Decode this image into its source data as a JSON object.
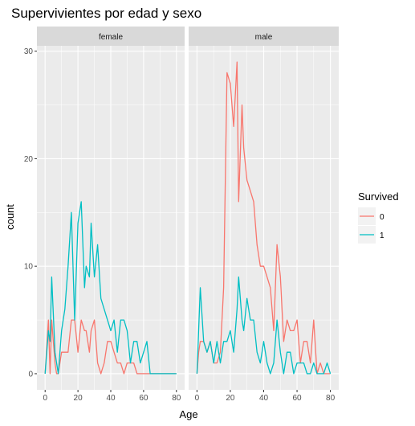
{
  "chart_data": {
    "type": "line",
    "title": "Supervivientes por edad y sexo",
    "xlabel": "Age",
    "ylabel": "count",
    "xlim": [
      -5,
      85
    ],
    "ylim": [
      -1.5,
      30.5
    ],
    "x_ticks": [
      0,
      20,
      40,
      60,
      80
    ],
    "y_ticks": [
      0,
      10,
      20,
      30
    ],
    "grid": true,
    "legend": {
      "title": "Survived",
      "placement": "right",
      "entries": [
        {
          "label": "0",
          "color": "#F8766D"
        },
        {
          "label": "1",
          "color": "#00BFC4"
        }
      ]
    },
    "panels": [
      {
        "name": "female",
        "series": [
          {
            "label": "0",
            "color": "#F8766D",
            "x": [
              0,
              2,
              3,
              4,
              6,
              7,
              8,
              10,
              12,
              14,
              16,
              18,
              20,
              22,
              24,
              25,
              27,
              28,
              30,
              32,
              34,
              36,
              38,
              40,
              42,
              44,
              46,
              48,
              50,
              52,
              54,
              56,
              58,
              62,
              64,
              66,
              68,
              70,
              72,
              74,
              76,
              80
            ],
            "y": [
              0,
              5,
              0,
              5,
              1,
              0,
              0,
              2,
              2,
              2,
              5,
              5,
              2,
              5,
              4,
              4,
              2,
              4,
              5,
              1,
              0,
              1,
              3,
              3,
              2,
              1,
              1,
              0,
              1,
              1,
              1,
              0,
              0,
              0,
              0,
              0,
              0,
              0,
              0,
              0,
              0,
              0
            ]
          },
          {
            "label": "1",
            "color": "#00BFC4",
            "x": [
              0,
              2,
              3,
              4,
              6,
              7,
              8,
              10,
              12,
              14,
              16,
              18,
              20,
              22,
              24,
              25,
              27,
              28,
              30,
              32,
              34,
              36,
              38,
              40,
              42,
              44,
              46,
              48,
              50,
              52,
              54,
              56,
              58,
              62,
              64,
              66,
              68,
              70,
              72,
              74,
              76,
              80
            ],
            "y": [
              0,
              4,
              3,
              9,
              2,
              1,
              0,
              4,
              6,
              10,
              15,
              5,
              14,
              16,
              8,
              10,
              9,
              14,
              9,
              12,
              7,
              6,
              5,
              4,
              5,
              2,
              5,
              5,
              4,
              1,
              3,
              3,
              1,
              3,
              0,
              0,
              0,
              0,
              0,
              0,
              0,
              0
            ]
          }
        ]
      },
      {
        "name": "male",
        "series": [
          {
            "label": "0",
            "color": "#F8766D",
            "x": [
              0,
              1,
              2,
              4,
              6,
              8,
              10,
              12,
              14,
              16,
              18,
              20,
              22,
              24,
              25,
              27,
              28,
              30,
              32,
              34,
              36,
              38,
              40,
              42,
              44,
              46,
              48,
              50,
              52,
              54,
              56,
              58,
              60,
              62,
              64,
              66,
              68,
              70,
              72,
              74,
              76,
              78,
              80
            ],
            "y": [
              0,
              2,
              3,
              3,
              2,
              3,
              1,
              1,
              2,
              8,
              28,
              27,
              23,
              29,
              16,
              25,
              21,
              18,
              17,
              16,
              12,
              10,
              10,
              9,
              8,
              4,
              12,
              9,
              3,
              5,
              4,
              4,
              5,
              1,
              3,
              3,
              1,
              5,
              0,
              1,
              0,
              0,
              0
            ]
          },
          {
            "label": "1",
            "color": "#00BFC4",
            "x": [
              0,
              2,
              4,
              6,
              8,
              10,
              12,
              14,
              16,
              18,
              20,
              22,
              24,
              25,
              27,
              28,
              30,
              32,
              34,
              36,
              38,
              40,
              42,
              44,
              46,
              48,
              50,
              52,
              54,
              56,
              58,
              60,
              62,
              64,
              66,
              68,
              70,
              72,
              74,
              76,
              78,
              80
            ],
            "y": [
              0,
              8,
              3,
              2,
              3,
              1,
              3,
              1,
              3,
              3,
              4,
              2,
              6,
              9,
              5,
              4,
              7,
              5,
              5,
              2,
              1,
              3,
              1,
              0,
              1,
              5,
              2,
              0,
              2,
              2,
              0,
              1,
              1,
              1,
              0,
              0,
              1,
              0,
              0,
              0,
              1,
              0
            ]
          }
        ]
      }
    ]
  }
}
